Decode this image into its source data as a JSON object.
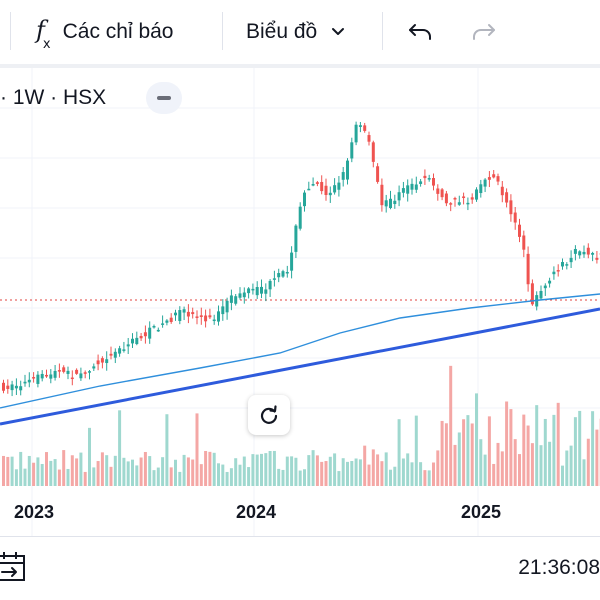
{
  "toolbar": {
    "indicators_label": "Các chỉ báo",
    "chart_type_label": "Biểu đồ"
  },
  "legend": {
    "text": "· 1W · HSX"
  },
  "time_axis": {
    "years": [
      "2023",
      "2024",
      "2025"
    ]
  },
  "footer": {
    "clock": "21:36:08"
  },
  "colors": {
    "up": "#26a69a",
    "down": "#ef5350",
    "ma_line": "#2f8fdc",
    "trend_line": "#2e5bdc",
    "price_line": "#e2433f"
  },
  "icons": {
    "indicators": "function-fx-icon",
    "chart_type_dropdown": "chevron-down-icon",
    "undo": "undo-icon",
    "redo": "redo-icon",
    "collapse": "minus-icon",
    "reset_scale": "rotate-reset-icon",
    "go_to_date": "calendar-arrow-icon"
  }
}
